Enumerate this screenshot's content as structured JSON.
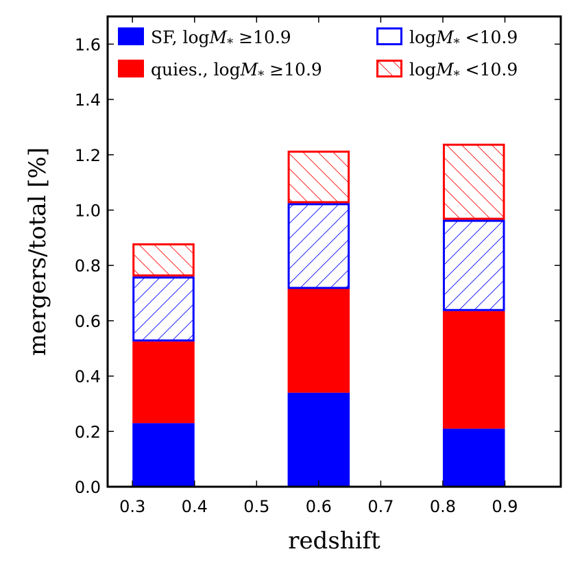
{
  "chart_data": {
    "type": "bar",
    "stacked": true,
    "title": "",
    "xlabel": "redshift",
    "ylabel": "mergers/total [%]",
    "xlim": [
      0.26,
      0.99
    ],
    "ylim": [
      0.0,
      1.7
    ],
    "xticks": [
      0.3,
      0.4,
      0.5,
      0.6,
      0.7,
      0.8,
      0.9
    ],
    "xtick_labels": [
      "0.3",
      "0.4",
      "0.5",
      "0.6",
      "0.7",
      "0.8",
      "0.9"
    ],
    "yticks": [
      0.0,
      0.2,
      0.4,
      0.6,
      0.8,
      1.0,
      1.2,
      1.4,
      1.6
    ],
    "ytick_labels": [
      "0.0",
      "0.2",
      "0.4",
      "0.6",
      "0.8",
      "1.0",
      "1.2",
      "1.4",
      "1.6"
    ],
    "bins": [
      [
        0.3,
        0.4
      ],
      [
        0.55,
        0.65
      ],
      [
        0.8,
        0.9
      ]
    ],
    "series": [
      {
        "name": "SF, logM* ≥10.9",
        "style": "solid",
        "color": "#0000ff",
        "values": [
          0.23,
          0.34,
          0.21
        ]
      },
      {
        "name": "quies., logM* ≥10.9",
        "style": "solid",
        "color": "#ff0000",
        "values": [
          0.295,
          0.375,
          0.425
        ]
      },
      {
        "name": "logM* <10.9",
        "style": "hatched",
        "color": "#0000ff",
        "values": [
          0.235,
          0.31,
          0.33
        ]
      },
      {
        "name": "logM* <10.9",
        "style": "hatched",
        "color": "#ff0000",
        "values": [
          0.12,
          0.19,
          0.275
        ]
      }
    ],
    "legend": {
      "placement": "top",
      "entries": [
        {
          "prefix": "SF, log",
          "symbol": "M",
          "subscript": "*",
          "suffix": " ≥10.9",
          "style": "solid",
          "color": "#0000ff"
        },
        {
          "prefix": "log",
          "symbol": "M",
          "subscript": "*",
          "suffix": " <10.9",
          "style": "outline",
          "color": "#0000ff"
        },
        {
          "prefix": "quies., log",
          "symbol": "M",
          "subscript": "*",
          "suffix": " ≥10.9",
          "style": "solid",
          "color": "#ff0000"
        },
        {
          "prefix": "log",
          "symbol": "M",
          "subscript": "*",
          "suffix": " <10.9",
          "style": "hatched",
          "color": "#ff0000"
        }
      ]
    }
  }
}
